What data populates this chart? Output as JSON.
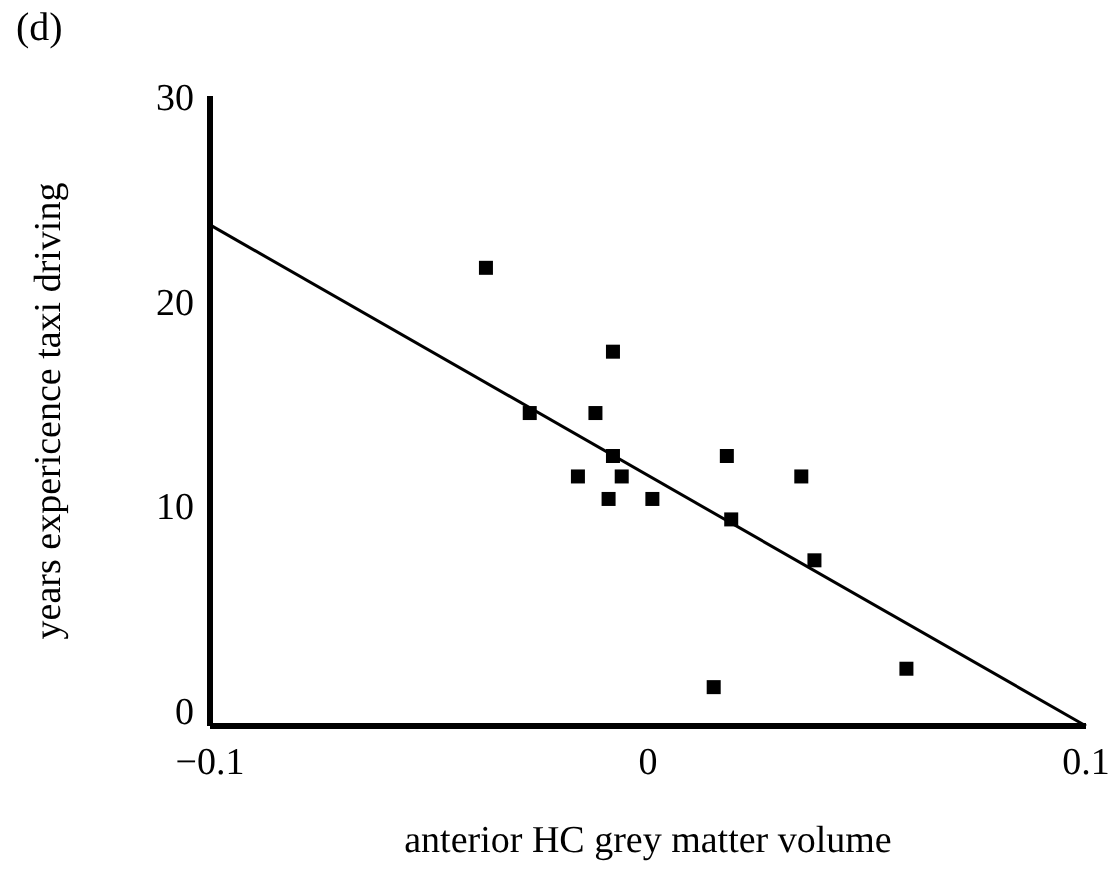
{
  "chart_data": {
    "type": "scatter",
    "title": "(d)",
    "xlabel": "anterior HC grey matter volume",
    "ylabel": "years expericence taxi driving",
    "xlim": [
      -0.1,
      0.1
    ],
    "ylim": [
      -0.8,
      30
    ],
    "xticks": [
      {
        "value": -0.1,
        "label": "−0.1"
      },
      0,
      0.1
    ],
    "yticks": [
      0,
      10,
      20,
      30
    ],
    "grid": false,
    "series": [
      {
        "marker": "square",
        "color": "#000000",
        "x": [
          -0.037,
          -0.008,
          -0.027,
          -0.012,
          -0.008,
          -0.016,
          -0.006,
          -0.009,
          0.001,
          0.018,
          0.019,
          0.035,
          0.038,
          0.015,
          0.059
        ],
        "values": [
          21.6,
          17.5,
          14.5,
          14.5,
          12.4,
          11.4,
          11.4,
          10.3,
          10.3,
          12.4,
          9.3,
          11.4,
          7.3,
          1.1,
          2.0
        ]
      },
      {
        "type": "line",
        "marker": "none",
        "color": "#000000",
        "x": [
          -0.1,
          0.1
        ],
        "values": [
          23.7,
          -0.8
        ]
      }
    ]
  }
}
